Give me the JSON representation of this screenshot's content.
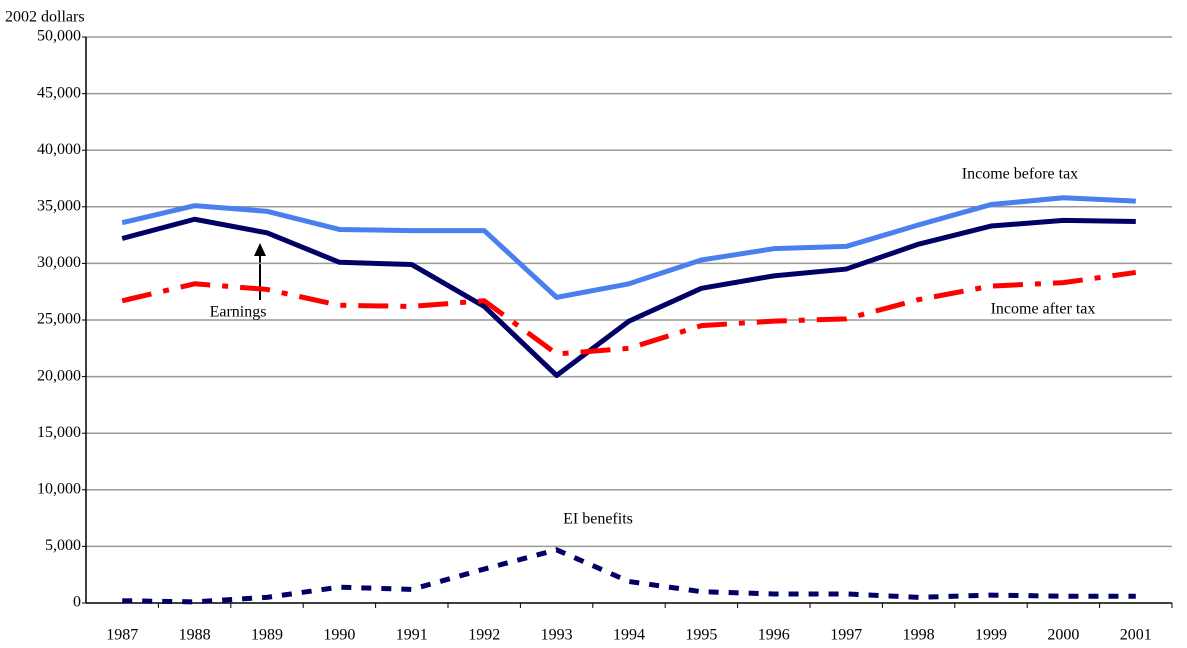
{
  "chart_data": {
    "type": "line",
    "ylabel": "2002 dollars",
    "categories": [
      "1987",
      "1988",
      "1989",
      "1990",
      "1991",
      "1992",
      "1993",
      "1994",
      "1995",
      "1996",
      "1997",
      "1998",
      "1999",
      "2000",
      "2001"
    ],
    "series": [
      {
        "name": "Income before tax",
        "color": "#4a7ff0",
        "style": "solid",
        "values": [
          33600,
          35100,
          34600,
          33000,
          32900,
          32900,
          27000,
          28200,
          30300,
          31300,
          31500,
          33400,
          35200,
          35800,
          35500
        ]
      },
      {
        "name": "Earnings",
        "color": "#000066",
        "style": "solid",
        "values": [
          32200,
          33900,
          32700,
          30100,
          29900,
          26200,
          20100,
          24900,
          27800,
          28900,
          29500,
          31700,
          33300,
          33800,
          33700
        ]
      },
      {
        "name": "Income after tax",
        "color": "#ff0000",
        "style": "dashed",
        "values": [
          26700,
          28200,
          27700,
          26300,
          26200,
          26700,
          22000,
          22500,
          24500,
          24900,
          25100,
          26800,
          28000,
          28300,
          29200
        ]
      },
      {
        "name": "EI benefits",
        "color": "#000066",
        "style": "dotted",
        "values": [
          200,
          100,
          500,
          1400,
          1200,
          3000,
          4700,
          1900,
          1000,
          800,
          800,
          500,
          700,
          600,
          600
        ]
      }
    ],
    "ylim": [
      0,
      50000
    ],
    "yticks": [
      0,
      {
        "value": 5000,
        "label": "5,000"
      },
      {
        "value": 10000,
        "label": "10,000"
      },
      {
        "value": 15000,
        "label": "15,000"
      },
      {
        "value": 20000,
        "label": "20,000"
      },
      {
        "value": 25000,
        "label": "25,000"
      },
      {
        "value": 30000,
        "label": "30,000"
      },
      {
        "value": 35000,
        "label": "35,000"
      },
      {
        "value": 40000,
        "label": "40,000"
      },
      {
        "value": 45000,
        "label": "45,000"
      },
      {
        "value": 50000,
        "label": "50,000"
      }
    ],
    "grid": true
  }
}
